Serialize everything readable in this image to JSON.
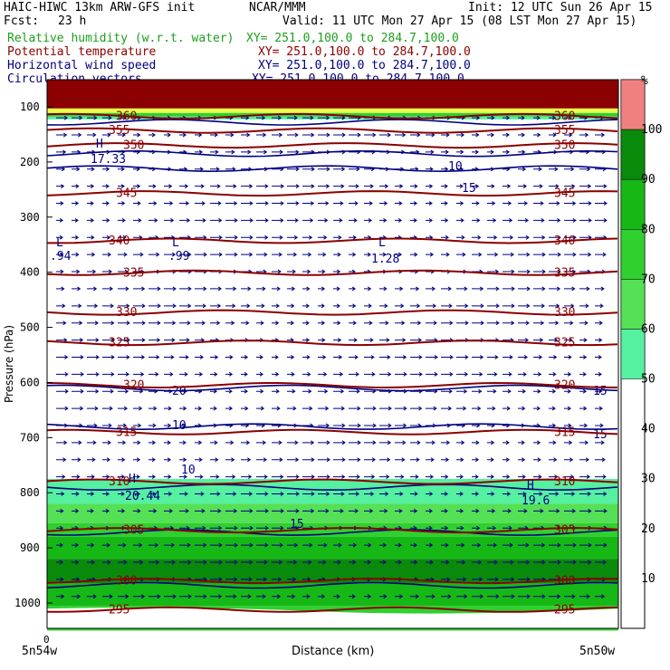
{
  "header": {
    "model": "HAIC-HIWC 13km ARW-GFS init",
    "org": "NCAR/MMM",
    "init": "Init: 12 UTC Sun 26 Apr 15",
    "fcst_label": "Fcst:",
    "fcst_value": "23 h",
    "valid": "Valid: 11 UTC Mon 27 Apr 15 (08 LST Mon 27 Apr 15)"
  },
  "legend": [
    {
      "field": "Relative humidity (w.r.t. water)",
      "xy": "XY= 251.0,100.0 to 284.7,100.0",
      "color": "#1e9e1e"
    },
    {
      "field": "Potential temperature",
      "xy": "XY= 251.0,100.0 to 284.7,100.0",
      "color": "#8b0000"
    },
    {
      "field": "Horizontal wind speed",
      "xy": "XY= 251.0,100.0 to 284.7,100.0",
      "color": "#000080"
    },
    {
      "field": "Circulation vectors",
      "xy": "XY= 251.0,100.0 to 284.7,100.0",
      "color": "#000080"
    }
  ],
  "chart_data": {
    "type": "cross-section",
    "ylabel": "Pressure (hPa)",
    "xlabel": "Distance (km)",
    "x_origin_label": "0",
    "x_left_label": "5n54w",
    "x_right_label": "5n50w",
    "y_ticks": [
      100,
      200,
      300,
      400,
      500,
      600,
      700,
      800,
      900,
      1000
    ],
    "ylim": [
      1050,
      50
    ],
    "rh_colorbar": {
      "unit": "%",
      "levels": [
        10,
        20,
        30,
        40,
        50,
        60,
        70,
        80,
        90,
        100
      ],
      "fill_levels": [
        50,
        60,
        70,
        80,
        90,
        100
      ],
      "fill_colors": [
        "#55f0a0",
        "#55e055",
        "#2fd02f",
        "#16b816",
        "#0a8a0a",
        "#f08080"
      ]
    },
    "theta_contours": [
      {
        "value": 295,
        "label": "295",
        "pressure": 1012
      },
      {
        "value": 300,
        "label": "300",
        "pressure": 960
      },
      {
        "value": 305,
        "label": "305",
        "pressure": 868
      },
      {
        "value": 310,
        "label": "310",
        "pressure": 780
      },
      {
        "value": 315,
        "label": "315",
        "pressure": 690
      },
      {
        "value": 320,
        "label": "320",
        "pressure": 605
      },
      {
        "value": 325,
        "label": "325",
        "pressure": 528
      },
      {
        "value": 330,
        "label": "330",
        "pressure": 473
      },
      {
        "value": 335,
        "label": "335",
        "pressure": 401
      },
      {
        "value": 340,
        "label": "340",
        "pressure": 343
      },
      {
        "value": 345,
        "label": "345",
        "pressure": 257
      },
      {
        "value": 350,
        "label": "350",
        "pressure": 170
      },
      {
        "value": 355,
        "label": "355",
        "pressure": 143
      },
      {
        "value": 360,
        "label": "360",
        "pressure": 117
      }
    ],
    "wind_labels": [
      "10",
      "15",
      "20",
      "15",
      "10",
      "15",
      "10",
      "15"
    ],
    "extrema": [
      {
        "type": "L",
        "value": ".94"
      },
      {
        "type": "L",
        "value": ".99"
      },
      {
        "type": "L",
        "value": "1.28"
      },
      {
        "type": "H",
        "value": "17.33"
      },
      {
        "type": "H",
        "value": "20.44"
      },
      {
        "type": "H",
        "value": "19.6"
      }
    ]
  }
}
